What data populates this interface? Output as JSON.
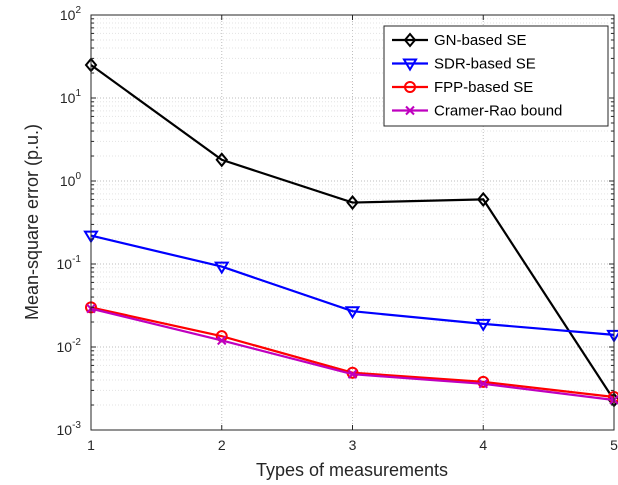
{
  "chart_data": {
    "type": "line",
    "xlabel": "Types of measurements",
    "ylabel": "Mean-square error (p.u.)",
    "x": [
      1,
      2,
      3,
      4,
      5
    ],
    "xlim": [
      1,
      5
    ],
    "ylim": [
      0.001,
      100
    ],
    "y_scale": "log",
    "grid": true,
    "minor_grid": true,
    "legend_position": "top-right",
    "x_ticks": [
      "1",
      "2",
      "3",
      "4",
      "5"
    ],
    "y_ticks": [
      {
        "base": "10",
        "exp": "-3"
      },
      {
        "base": "10",
        "exp": "-2"
      },
      {
        "base": "10",
        "exp": "-1"
      },
      {
        "base": "10",
        "exp": "0"
      },
      {
        "base": "10",
        "exp": "1"
      },
      {
        "base": "10",
        "exp": "2"
      }
    ],
    "series": [
      {
        "name": "GN-based SE",
        "values": [
          25,
          1.8,
          0.55,
          0.6,
          0.0023
        ],
        "color": "#000000",
        "marker": "diamond"
      },
      {
        "name": "SDR-based SE",
        "values": [
          0.22,
          0.093,
          0.027,
          0.019,
          0.014
        ],
        "color": "#0000ff",
        "marker": "triangle-down"
      },
      {
        "name": "FPP-based SE",
        "values": [
          0.03,
          0.0135,
          0.0049,
          0.0038,
          0.0025
        ],
        "color": "#ff0000",
        "marker": "circle"
      },
      {
        "name": "Cramer-Rao bound",
        "values": [
          0.029,
          0.012,
          0.0047,
          0.0036,
          0.0023
        ],
        "color": "#bf00bf",
        "marker": "x"
      }
    ]
  }
}
